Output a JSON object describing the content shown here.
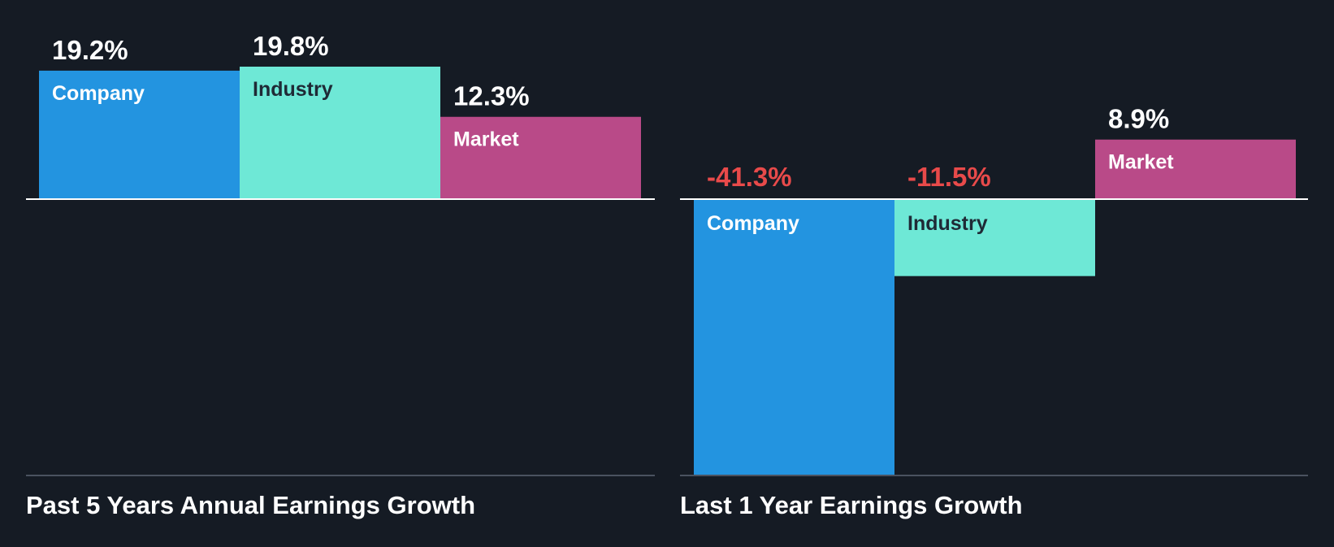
{
  "colors": {
    "background": "#151b24",
    "company": "#2394e0",
    "industry": "#6ee8d6",
    "market": "#b94a88",
    "positive_label": "#ffffff",
    "negative_label": "#e84a4a",
    "company_bar_text": "#ffffff",
    "industry_bar_text": "#1f2a36",
    "market_bar_text": "#ffffff",
    "zero_line": "#ffffff",
    "base_line": "#4a5260"
  },
  "chart_data": [
    {
      "type": "bar",
      "title": "Past 5 Years Annual Earnings Growth",
      "categories": [
        "Company",
        "Industry",
        "Market"
      ],
      "values": [
        19.2,
        19.8,
        12.3
      ],
      "value_labels": [
        "19.2%",
        "19.8%",
        "12.3%"
      ],
      "unit": "%",
      "xlabel": "",
      "ylabel": ""
    },
    {
      "type": "bar",
      "title": "Last 1 Year Earnings Growth",
      "categories": [
        "Company",
        "Industry",
        "Market"
      ],
      "values": [
        -41.3,
        -11.5,
        8.9
      ],
      "value_labels": [
        "-41.3%",
        "-11.5%",
        "8.9%"
      ],
      "unit": "%",
      "xlabel": "",
      "ylabel": ""
    }
  ]
}
